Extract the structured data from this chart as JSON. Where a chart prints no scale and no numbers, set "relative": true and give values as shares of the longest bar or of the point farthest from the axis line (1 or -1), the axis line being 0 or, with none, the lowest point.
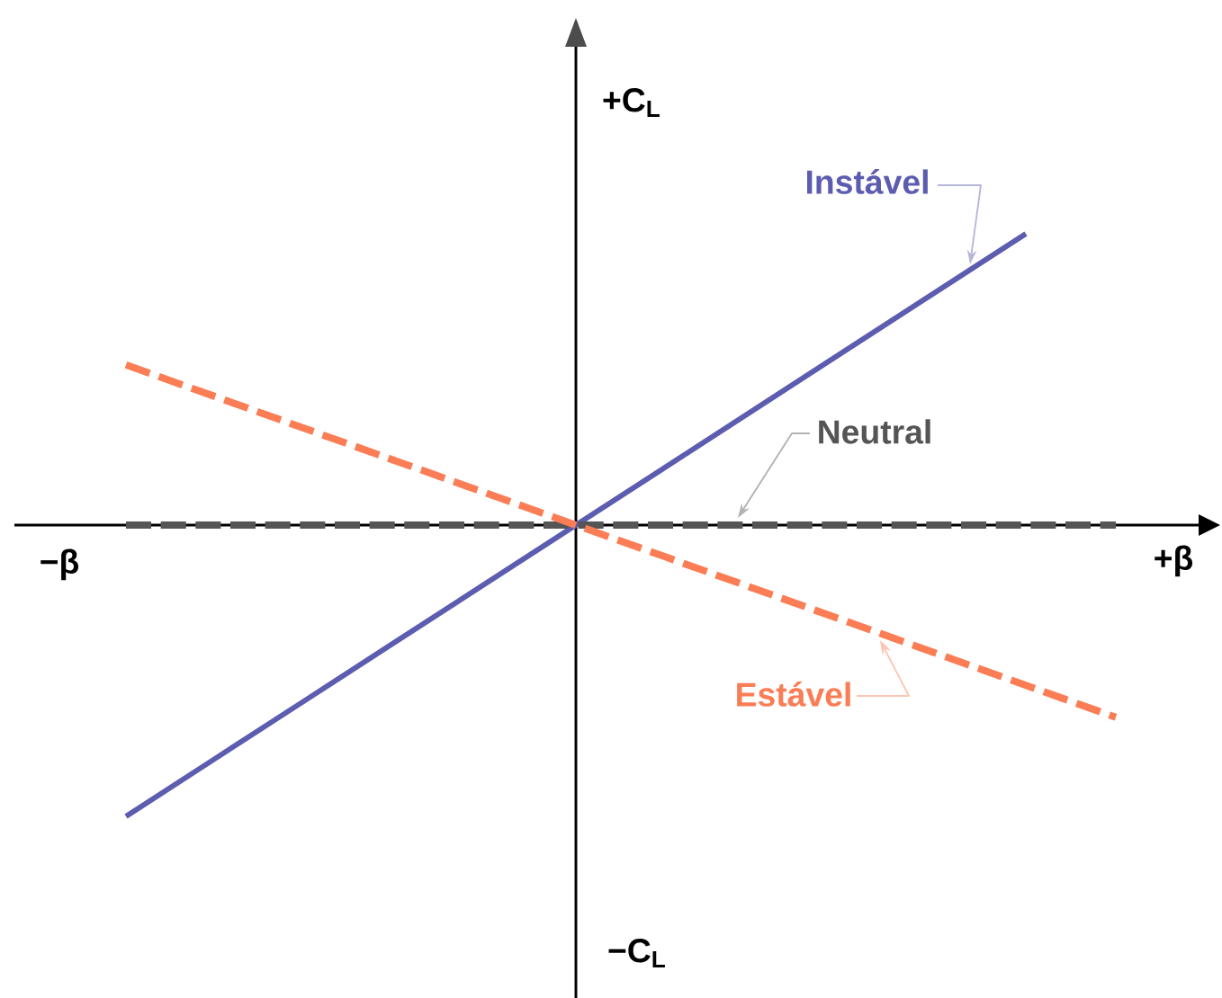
{
  "chart_data": {
    "type": "line",
    "relative": true,
    "xlabel": "+β",
    "ylabel": "+C$_{L}$",
    "annotations": [
      "−β",
      "−C$_{L}$"
    ],
    "categories": [
      null,
      null,
      null,
      null,
      null,
      null,
      null,
      null,
      null,
      null,
      null,
      null,
      null
    ],
    "series": [
      {
        "name": "Instável",
        "color": "#5c5cb0",
        "line_style": "solid",
        "values": [
          null,
          -1,
          -0.8,
          -0.6,
          -0.4,
          -0.2,
          0,
          0.2,
          0.4,
          0.6,
          0.8,
          1,
          null
        ]
      },
      {
        "name": "Neutral",
        "color": "#555555",
        "line_style": "dashed",
        "values": [
          null,
          0,
          0,
          0,
          0,
          0,
          0,
          0,
          0,
          0,
          0,
          0,
          0
        ]
      },
      {
        "name": "Estável",
        "color": "#fb7d55",
        "line_style": "dashed",
        "values": [
          null,
          0.55,
          0.44,
          0.33,
          0.22,
          0.11,
          0,
          -0.11,
          -0.22,
          -0.33,
          -0.44,
          -0.55,
          -0.66
        ]
      }
    ]
  }
}
